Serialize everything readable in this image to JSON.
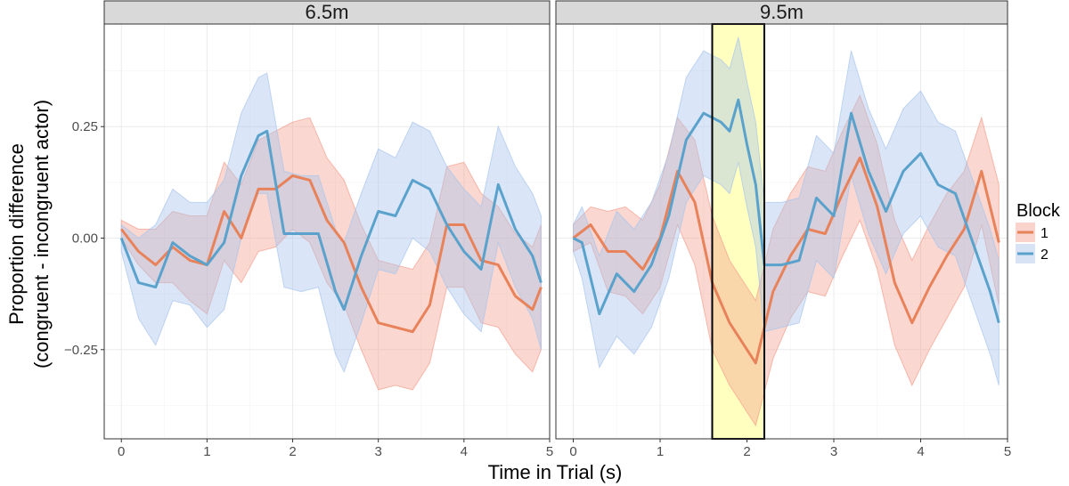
{
  "chart_data": {
    "type": "line",
    "xlabel": "Time in Trial (s)",
    "ylabel_line1": "Proportion difference",
    "ylabel_line2": "(congruent - incongruent actor)",
    "xlim": [
      -0.2,
      5.0
    ],
    "ylim": [
      -0.45,
      0.48
    ],
    "x_ticks": [
      0,
      1,
      2,
      3,
      4,
      5
    ],
    "x_tick_labels": [
      "0",
      "1",
      "2",
      "3",
      "4",
      "5"
    ],
    "y_ticks": [
      -0.25,
      0.0,
      0.25
    ],
    "y_tick_labels": [
      "−0.25",
      "0.00",
      "0.25"
    ],
    "grid": true,
    "legend": {
      "title": "Block",
      "position": "right",
      "entries": [
        {
          "label": "1",
          "color": "#e8825a"
        },
        {
          "label": "2",
          "color": "#5aa2cc"
        }
      ]
    },
    "colors": {
      "block1_line": "#e8825a",
      "block1_ribbon": "#f4a08e",
      "block2_line": "#5aa2cc",
      "block2_ribbon": "#a8c4ec",
      "highlight_fill": "#ffffbf",
      "highlight_border": "#000000"
    },
    "panels": [
      {
        "label": "6.5m",
        "highlight": null,
        "series": [
          {
            "name": "1",
            "x": [
              0,
              0.2,
              0.4,
              0.6,
              0.8,
              1.0,
              1.2,
              1.4,
              1.6,
              1.8,
              2.0,
              2.2,
              2.4,
              2.6,
              2.8,
              3.0,
              3.2,
              3.4,
              3.6,
              3.8,
              4.0,
              4.2,
              4.4,
              4.6,
              4.8,
              4.9
            ],
            "y": [
              0.02,
              -0.03,
              -0.06,
              -0.02,
              -0.05,
              -0.06,
              0.06,
              0.0,
              0.11,
              0.11,
              0.14,
              0.13,
              0.04,
              -0.01,
              -0.11,
              -0.19,
              -0.2,
              -0.21,
              -0.15,
              0.03,
              0.03,
              -0.05,
              -0.06,
              -0.13,
              -0.16,
              -0.11
            ],
            "lower": [
              0.0,
              -0.06,
              -0.1,
              -0.1,
              -0.14,
              -0.17,
              -0.05,
              -0.1,
              -0.03,
              -0.02,
              0.02,
              -0.01,
              -0.1,
              -0.15,
              -0.25,
              -0.34,
              -0.33,
              -0.34,
              -0.28,
              -0.11,
              -0.11,
              -0.19,
              -0.2,
              -0.26,
              -0.3,
              -0.25
            ],
            "upper": [
              0.04,
              0.02,
              0.02,
              0.06,
              0.05,
              0.05,
              0.17,
              0.12,
              0.22,
              0.24,
              0.26,
              0.27,
              0.18,
              0.13,
              0.03,
              -0.05,
              -0.06,
              -0.07,
              -0.01,
              0.16,
              0.17,
              0.1,
              0.07,
              0.01,
              -0.02,
              0.03
            ]
          },
          {
            "name": "2",
            "x": [
              0,
              0.2,
              0.4,
              0.6,
              0.8,
              1.0,
              1.2,
              1.4,
              1.6,
              1.7,
              1.9,
              2.1,
              2.3,
              2.5,
              2.6,
              2.8,
              3.0,
              3.2,
              3.4,
              3.6,
              3.8,
              4.0,
              4.2,
              4.4,
              4.6,
              4.8,
              4.9
            ],
            "y": [
              0.0,
              -0.1,
              -0.11,
              -0.01,
              -0.04,
              -0.06,
              -0.01,
              0.14,
              0.23,
              0.24,
              0.01,
              0.01,
              0.01,
              -0.12,
              -0.16,
              -0.04,
              0.06,
              0.05,
              0.13,
              0.11,
              0.03,
              -0.03,
              -0.07,
              0.12,
              0.02,
              -0.04,
              -0.1
            ],
            "lower": [
              -0.03,
              -0.18,
              -0.24,
              -0.14,
              -0.15,
              -0.2,
              -0.16,
              0.0,
              0.1,
              0.1,
              -0.11,
              -0.12,
              -0.11,
              -0.26,
              -0.3,
              -0.19,
              -0.07,
              -0.08,
              0.0,
              -0.03,
              -0.11,
              -0.17,
              -0.21,
              -0.01,
              -0.11,
              -0.18,
              -0.25
            ],
            "upper": [
              0.03,
              0.0,
              0.03,
              0.11,
              0.08,
              0.08,
              0.13,
              0.28,
              0.36,
              0.37,
              0.15,
              0.14,
              0.14,
              0.02,
              -0.01,
              0.1,
              0.2,
              0.18,
              0.26,
              0.24,
              0.16,
              0.11,
              0.07,
              0.25,
              0.16,
              0.1,
              0.05
            ]
          }
        ]
      },
      {
        "label": "9.5m",
        "highlight": {
          "x_start": 1.6,
          "x_end": 2.2
        },
        "series": [
          {
            "name": "1",
            "x": [
              0,
              0.2,
              0.4,
              0.6,
              0.8,
              1.0,
              1.2,
              1.4,
              1.6,
              1.8,
              2.0,
              2.1,
              2.3,
              2.5,
              2.7,
              2.9,
              3.1,
              3.3,
              3.5,
              3.7,
              3.9,
              4.1,
              4.3,
              4.5,
              4.7,
              4.9
            ],
            "y": [
              0.0,
              0.03,
              -0.03,
              -0.03,
              -0.07,
              0.0,
              0.15,
              0.08,
              -0.1,
              -0.19,
              -0.25,
              -0.28,
              -0.12,
              -0.04,
              0.02,
              0.01,
              0.1,
              0.18,
              0.07,
              -0.1,
              -0.19,
              -0.11,
              -0.04,
              0.02,
              0.15,
              -0.01
            ],
            "lower": [
              -0.03,
              -0.01,
              -0.12,
              -0.13,
              -0.17,
              -0.11,
              0.03,
              -0.06,
              -0.25,
              -0.33,
              -0.39,
              -0.42,
              -0.27,
              -0.18,
              -0.12,
              -0.13,
              -0.04,
              0.04,
              -0.07,
              -0.24,
              -0.33,
              -0.25,
              -0.18,
              -0.11,
              0.03,
              -0.15
            ],
            "upper": [
              0.03,
              0.07,
              0.06,
              0.07,
              0.04,
              0.12,
              0.27,
              0.22,
              0.05,
              -0.05,
              -0.11,
              -0.14,
              0.02,
              0.1,
              0.16,
              0.15,
              0.24,
              0.32,
              0.21,
              0.04,
              -0.05,
              0.03,
              0.1,
              0.15,
              0.27,
              0.12
            ]
          },
          {
            "name": "2",
            "x": [
              0,
              0.1,
              0.3,
              0.5,
              0.7,
              0.9,
              1.1,
              1.3,
              1.5,
              1.7,
              1.8,
              1.9,
              2.0,
              2.1,
              2.2,
              2.4,
              2.6,
              2.8,
              3.0,
              3.2,
              3.4,
              3.6,
              3.8,
              4.0,
              4.2,
              4.4,
              4.6,
              4.8,
              4.9
            ],
            "y": [
              0.0,
              -0.01,
              -0.17,
              -0.08,
              -0.12,
              -0.06,
              0.05,
              0.22,
              0.28,
              0.26,
              0.24,
              0.31,
              0.21,
              0.12,
              -0.06,
              -0.06,
              -0.05,
              0.09,
              0.05,
              0.28,
              0.15,
              0.06,
              0.15,
              0.19,
              0.12,
              0.1,
              -0.01,
              -0.12,
              -0.19
            ],
            "lower": [
              -0.03,
              -0.09,
              -0.29,
              -0.22,
              -0.26,
              -0.2,
              -0.09,
              0.08,
              0.14,
              0.12,
              0.1,
              0.17,
              0.07,
              -0.02,
              -0.21,
              -0.2,
              -0.19,
              -0.05,
              -0.09,
              0.14,
              0.01,
              -0.08,
              0.01,
              0.05,
              -0.02,
              -0.04,
              -0.15,
              -0.26,
              -0.33
            ],
            "upper": [
              0.03,
              0.07,
              -0.04,
              0.06,
              0.02,
              0.08,
              0.19,
              0.36,
              0.42,
              0.4,
              0.38,
              0.45,
              0.35,
              0.26,
              0.08,
              0.08,
              0.09,
              0.23,
              0.19,
              0.42,
              0.29,
              0.2,
              0.29,
              0.33,
              0.26,
              0.24,
              0.13,
              0.02,
              -0.05
            ]
          }
        ]
      }
    ]
  }
}
